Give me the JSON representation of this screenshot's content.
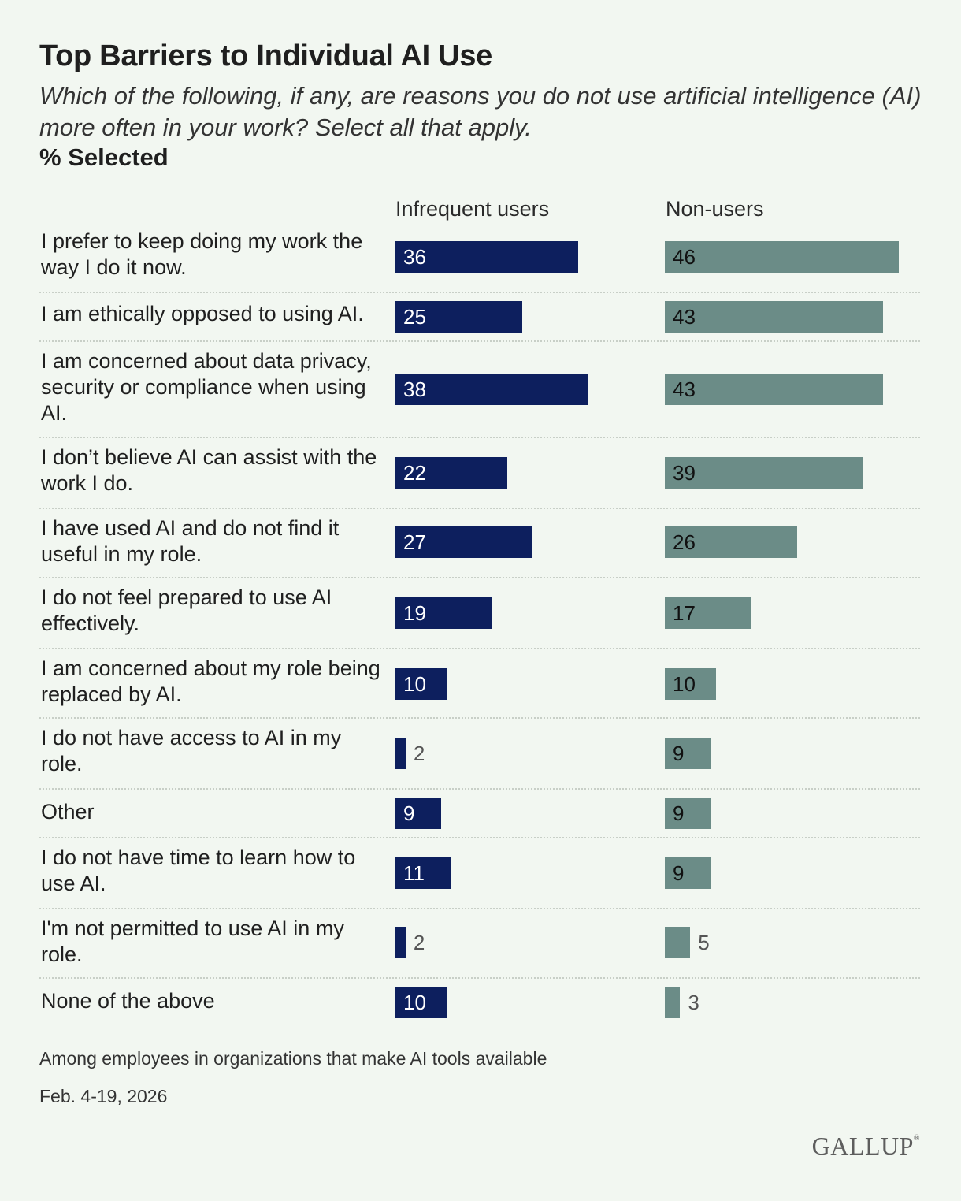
{
  "chart_data": {
    "type": "bar",
    "orientation": "horizontal",
    "title": "Top Barriers to Individual AI Use",
    "subtitle": "Which of the following, if any, are reasons you do not use artificial intelligence (AI) more often in your work? Select all that apply.",
    "measure_label": "% Selected",
    "categories": [
      "I prefer to keep doing my work the way I do it now.",
      "I am ethically opposed to using AI.",
      "I am concerned about data privacy, security or compliance when using AI.",
      "I don’t believe AI can assist with the work I do.",
      "I have used AI and do not find it useful in my role.",
      "I do not feel prepared to use AI effectively.",
      "I am concerned about my role being replaced by AI.",
      "I do not have access to AI in my role.",
      "Other",
      "I do not have time to learn how to use AI.",
      "I'm not permitted to use AI in my role.",
      "None of the above"
    ],
    "series": [
      {
        "name": "Infrequent users",
        "color": "#0d1f5e",
        "values": [
          36,
          25,
          38,
          22,
          27,
          19,
          10,
          2,
          9,
          11,
          2,
          10
        ]
      },
      {
        "name": "Non-users",
        "color": "#6b8c87",
        "values": [
          46,
          43,
          43,
          39,
          26,
          17,
          10,
          9,
          9,
          9,
          5,
          3
        ]
      }
    ],
    "xlim": [
      0,
      50
    ],
    "legend": "column headers above each bar group"
  },
  "footer": {
    "note": "Among employees in organizations that make AI tools available",
    "date": "Feb. 4-19, 2026"
  },
  "brand": {
    "logo_text": "GALLUP",
    "logo_mark": "®"
  }
}
